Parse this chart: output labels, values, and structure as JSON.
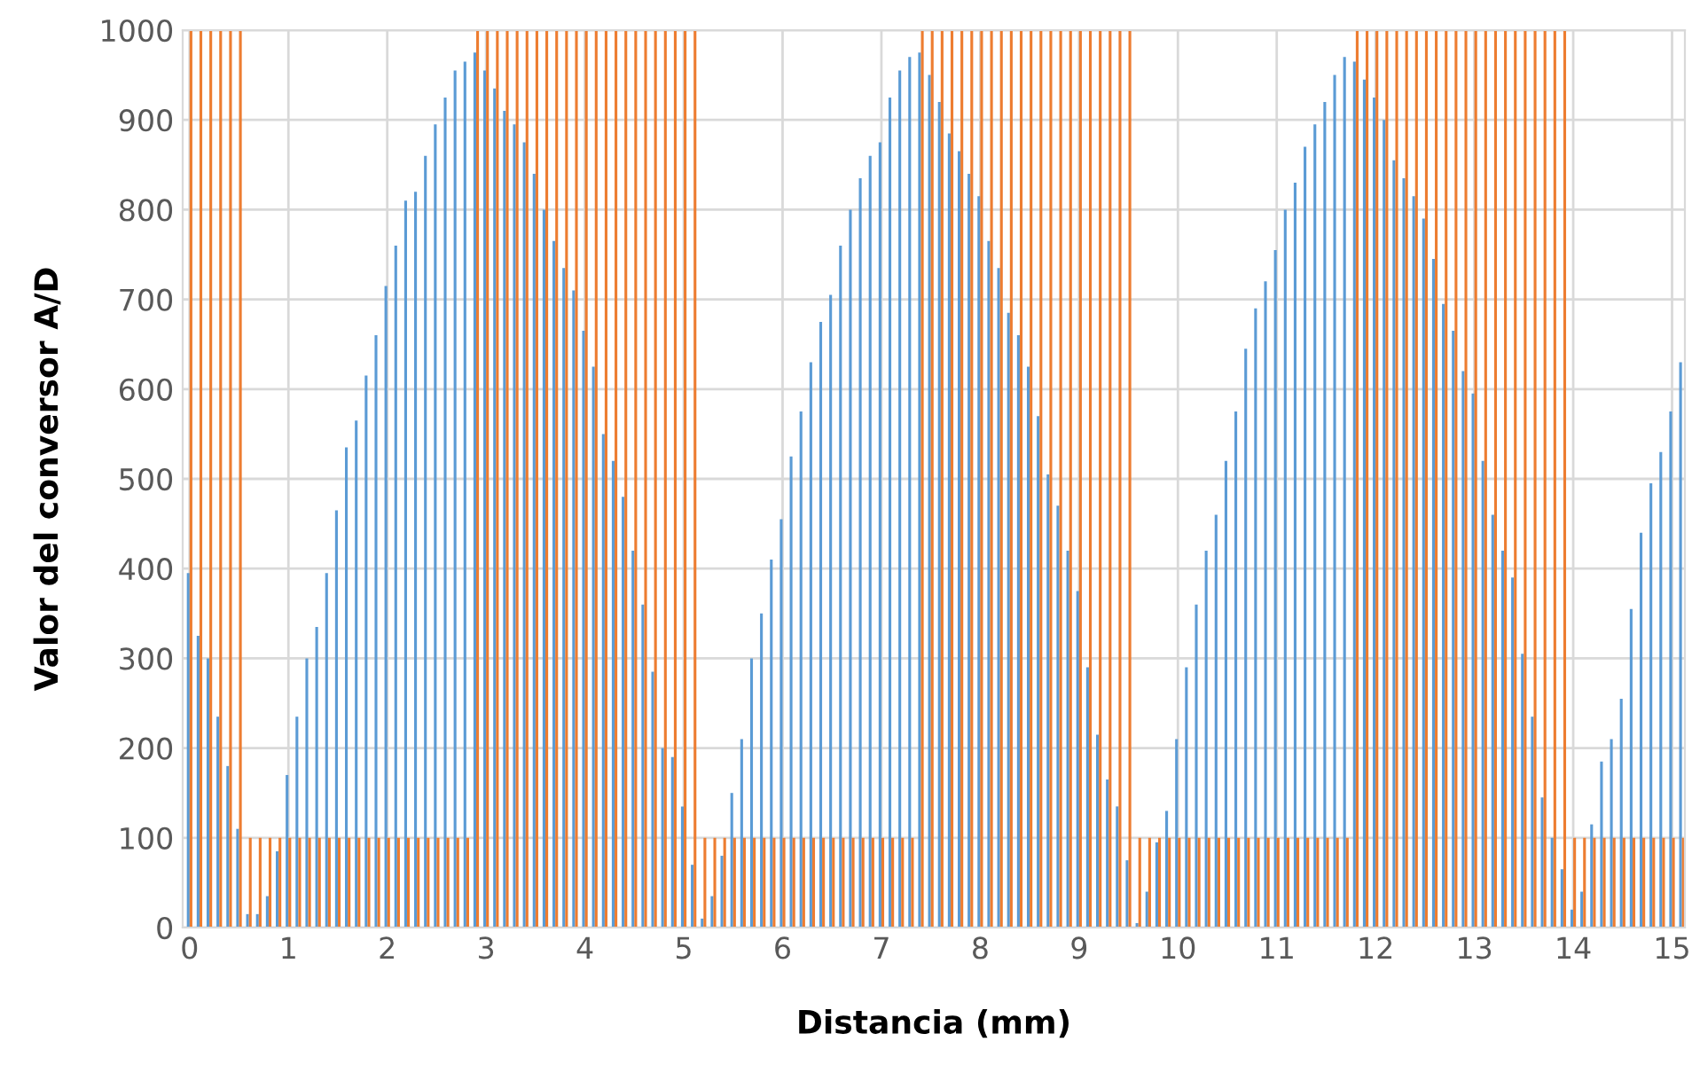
{
  "chart_data": {
    "type": "bar",
    "xlabel": "Distancia (mm)",
    "ylabel": "Valor del conversor A/D",
    "x": [
      0,
      0.1,
      0.2,
      0.3,
      0.4,
      0.5,
      0.6,
      0.7,
      0.8,
      0.9,
      1.0,
      1.1,
      1.2,
      1.3,
      1.4,
      1.5,
      1.6,
      1.7,
      1.8,
      1.9,
      2.0,
      2.1,
      2.2,
      2.3,
      2.4,
      2.5,
      2.6,
      2.7,
      2.8,
      2.9,
      3.0,
      3.1,
      3.2,
      3.3,
      3.4,
      3.5,
      3.6,
      3.7,
      3.8,
      3.9,
      4.0,
      4.1,
      4.2,
      4.3,
      4.4,
      4.5,
      4.6,
      4.7,
      4.8,
      4.9,
      5.0,
      5.1,
      5.2,
      5.3,
      5.4,
      5.5,
      5.6,
      5.7,
      5.8,
      5.9,
      6.0,
      6.1,
      6.2,
      6.3,
      6.4,
      6.5,
      6.6,
      6.7,
      6.8,
      6.9,
      7.0,
      7.1,
      7.2,
      7.3,
      7.4,
      7.5,
      7.6,
      7.7,
      7.8,
      7.9,
      8.0,
      8.1,
      8.2,
      8.3,
      8.4,
      8.5,
      8.6,
      8.7,
      8.8,
      8.9,
      9.0,
      9.1,
      9.2,
      9.3,
      9.4,
      9.5,
      9.6,
      9.7,
      9.8,
      9.9,
      10.0,
      10.1,
      10.2,
      10.3,
      10.4,
      10.5,
      10.6,
      10.7,
      10.8,
      10.9,
      11.0,
      11.1,
      11.2,
      11.3,
      11.4,
      11.5,
      11.6,
      11.7,
      11.8,
      11.9,
      12.0,
      12.1,
      12.2,
      12.3,
      12.4,
      12.5,
      12.6,
      12.7,
      12.8,
      12.9,
      13.0,
      13.1,
      13.2,
      13.3,
      13.4,
      13.5,
      13.6,
      13.7,
      13.8,
      13.9,
      14.0,
      14.1,
      14.2,
      14.3,
      14.4,
      14.5,
      14.6,
      14.7,
      14.8,
      14.9,
      15.0,
      15.1
    ],
    "series": [
      {
        "color": "#5b9bd5",
        "values": [
          395,
          325,
          300,
          235,
          180,
          110,
          15,
          15,
          35,
          85,
          170,
          235,
          300,
          335,
          395,
          465,
          535,
          565,
          615,
          660,
          715,
          760,
          810,
          820,
          860,
          895,
          925,
          955,
          965,
          975,
          955,
          935,
          910,
          895,
          875,
          840,
          800,
          765,
          735,
          710,
          665,
          625,
          550,
          520,
          480,
          420,
          360,
          285,
          200,
          190,
          135,
          70,
          10,
          35,
          80,
          150,
          210,
          300,
          350,
          410,
          455,
          525,
          575,
          630,
          675,
          705,
          760,
          800,
          835,
          860,
          875,
          925,
          955,
          970,
          975,
          950,
          920,
          885,
          865,
          840,
          815,
          765,
          735,
          685,
          660,
          625,
          570,
          505,
          470,
          420,
          375,
          290,
          215,
          165,
          135,
          75,
          5,
          40,
          95,
          130,
          210,
          290,
          360,
          420,
          460,
          520,
          575,
          645,
          690,
          720,
          755,
          800,
          830,
          870,
          895,
          920,
          950,
          970,
          965,
          945,
          925,
          900,
          855,
          835,
          815,
          790,
          745,
          695,
          665,
          620,
          595,
          520,
          460,
          420,
          390,
          305,
          235,
          145,
          100,
          65,
          20,
          40,
          115,
          185,
          210,
          255,
          355,
          440,
          495,
          530,
          575,
          630
        ]
      },
      {
        "color": "#ed7d31",
        "values": [
          1000,
          1000,
          1000,
          1000,
          1000,
          1000,
          100,
          100,
          100,
          100,
          100,
          100,
          100,
          100,
          100,
          100,
          100,
          100,
          100,
          100,
          100,
          100,
          100,
          100,
          100,
          100,
          100,
          100,
          100,
          1000,
          1000,
          1000,
          1000,
          1000,
          1000,
          1000,
          1000,
          1000,
          1000,
          1000,
          1000,
          1000,
          1000,
          1000,
          1000,
          1000,
          1000,
          1000,
          1000,
          1000,
          1000,
          1000,
          100,
          100,
          100,
          100,
          100,
          100,
          100,
          100,
          100,
          100,
          100,
          100,
          100,
          100,
          100,
          100,
          100,
          100,
          100,
          100,
          100,
          100,
          1000,
          1000,
          1000,
          1000,
          1000,
          1000,
          1000,
          1000,
          1000,
          1000,
          1000,
          1000,
          1000,
          1000,
          1000,
          1000,
          1000,
          1000,
          1000,
          1000,
          1000,
          1000,
          100,
          100,
          100,
          100,
          100,
          100,
          100,
          100,
          100,
          100,
          100,
          100,
          100,
          100,
          100,
          100,
          100,
          100,
          100,
          100,
          100,
          100,
          1000,
          1000,
          1000,
          1000,
          1000,
          1000,
          1000,
          1000,
          1000,
          1000,
          1000,
          1000,
          1000,
          1000,
          1000,
          1000,
          1000,
          1000,
          1000,
          1000,
          1000,
          1000,
          100,
          100,
          100,
          100,
          100,
          100,
          100,
          100,
          100,
          100,
          100,
          100
        ]
      }
    ],
    "xlim": [
      -0.07,
      15.13
    ],
    "xticks": [
      0,
      1,
      2,
      3,
      4,
      5,
      6,
      7,
      8,
      9,
      10,
      11,
      12,
      13,
      14,
      15
    ],
    "ylim": [
      0,
      1000
    ],
    "yticks": [
      0,
      100,
      200,
      300,
      400,
      500,
      600,
      700,
      800,
      900,
      1000
    ],
    "grid": true,
    "legend": false
  }
}
